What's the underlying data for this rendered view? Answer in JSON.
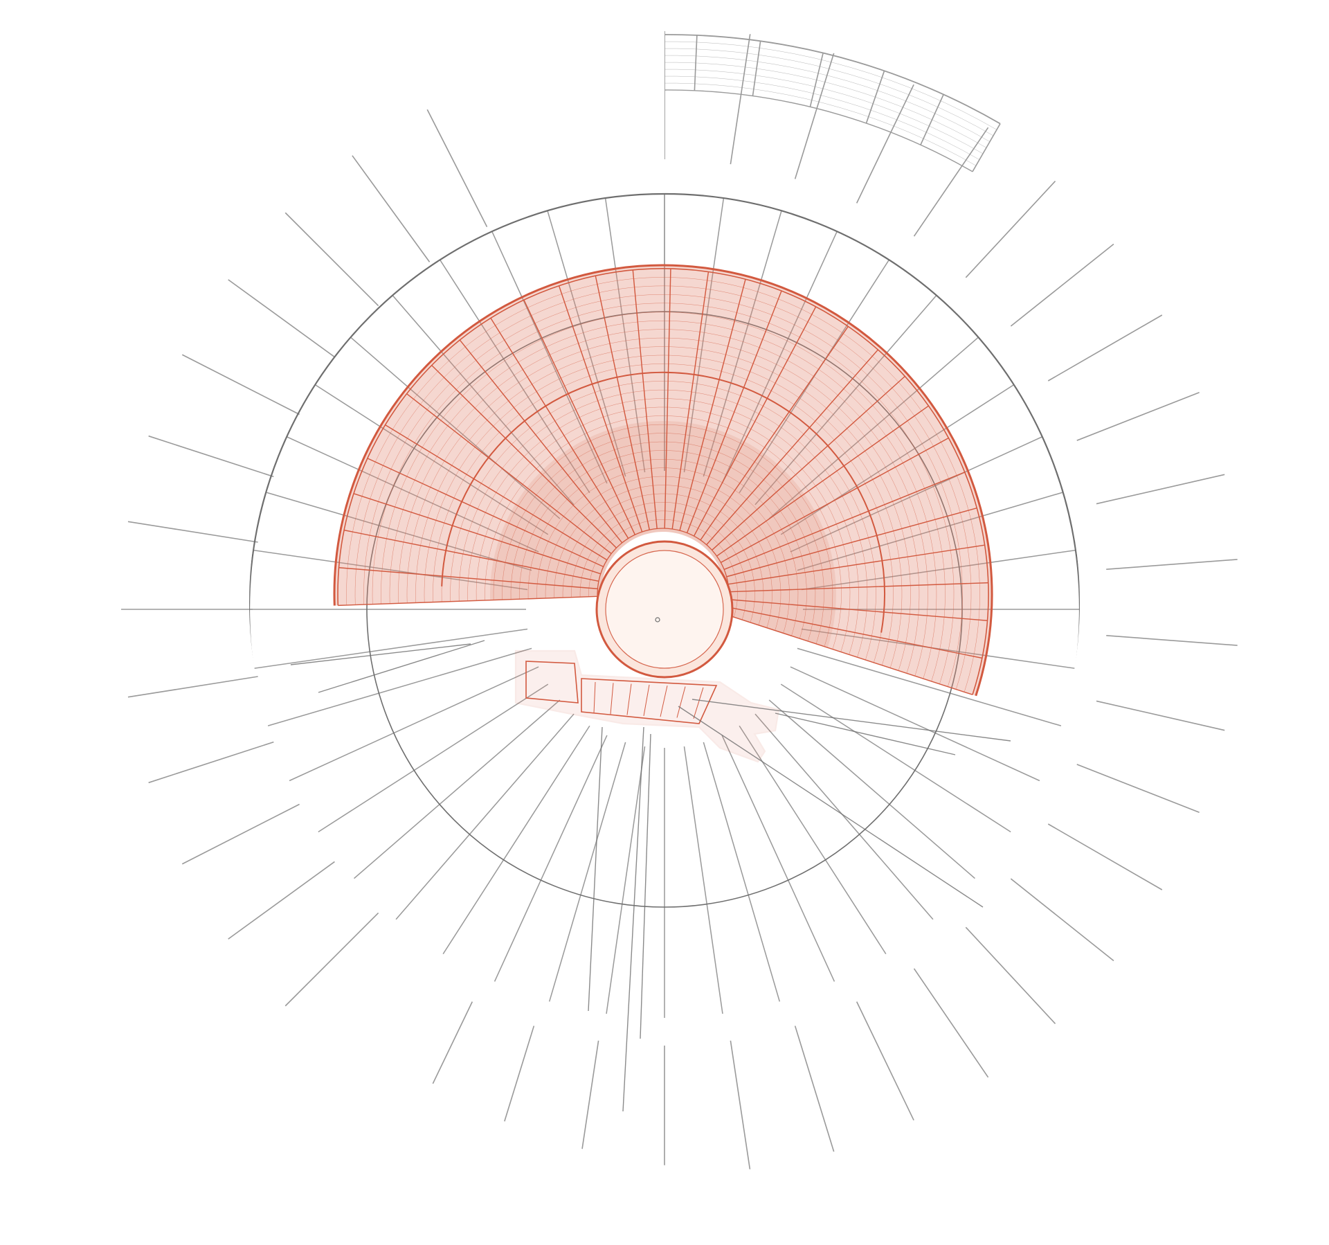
{
  "drawing": {
    "corner_note": "",
    "colors": {
      "background": "#ffffff",
      "line": "#9a9a9a",
      "line_dark": "#6e6e6e",
      "highlight": "#e08570",
      "highlight_line": "#d2593f",
      "center_fill": "#fbe6dd"
    }
  }
}
